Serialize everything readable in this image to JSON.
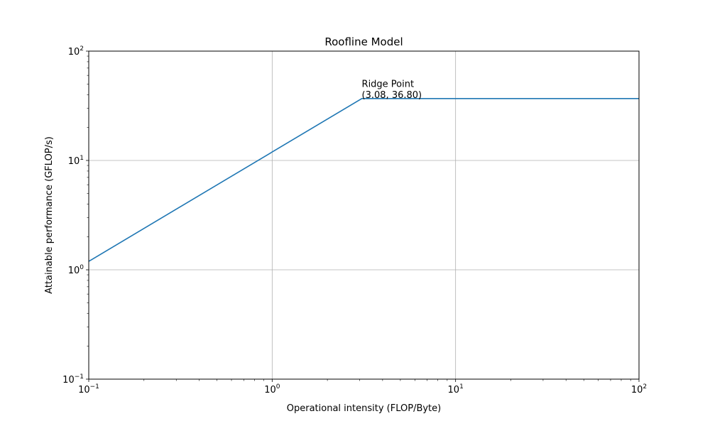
{
  "chart_data": {
    "type": "line",
    "title": "Roofline Model",
    "xlabel": "Operational intensity (FLOP/Byte)",
    "ylabel": "Attainable performance (GFLOP/s)",
    "xscale": "log",
    "yscale": "log",
    "xlim": [
      0.1,
      100
    ],
    "ylim": [
      0.1,
      100
    ],
    "grid": true,
    "x_ticks": [
      {
        "value": 0.1,
        "base": "10",
        "exp": "−1"
      },
      {
        "value": 1,
        "base": "10",
        "exp": "0"
      },
      {
        "value": 10,
        "base": "10",
        "exp": "1"
      },
      {
        "value": 100,
        "base": "10",
        "exp": "2"
      }
    ],
    "y_ticks": [
      {
        "value": 0.1,
        "base": "10",
        "exp": "−1"
      },
      {
        "value": 1,
        "base": "10",
        "exp": "0"
      },
      {
        "value": 10,
        "base": "10",
        "exp": "1"
      },
      {
        "value": 100,
        "base": "10",
        "exp": "2"
      }
    ],
    "series": [
      {
        "color": "#1f77b4",
        "points": [
          [
            0.1,
            1.195
          ],
          [
            3.08,
            36.8
          ],
          [
            100,
            36.8
          ]
        ]
      }
    ],
    "annotations": [
      {
        "lines": [
          "Ridge Point",
          "(3.08, 36.80)"
        ],
        "x": 3.08,
        "y": 36.8
      }
    ]
  }
}
